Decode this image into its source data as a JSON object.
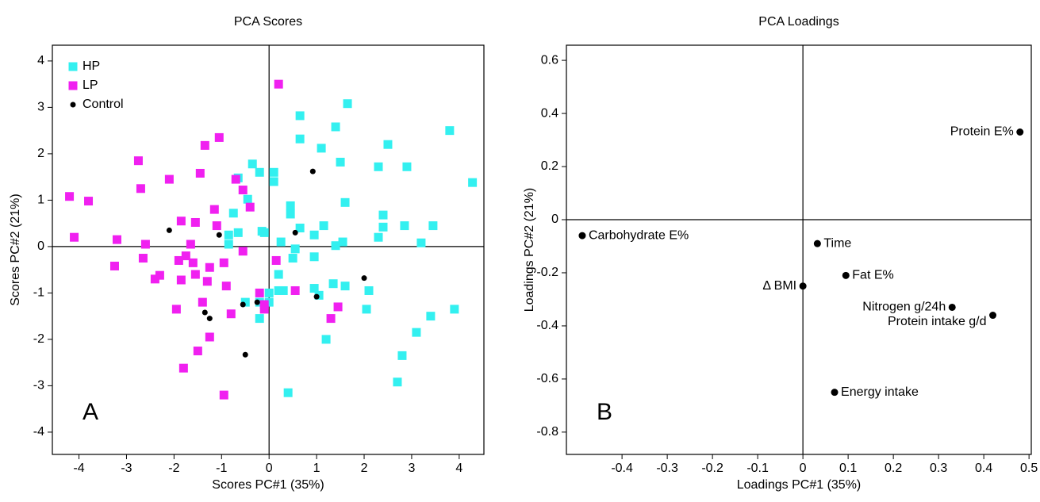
{
  "chart_data": [
    {
      "type": "scatter",
      "title": "PCA Scores",
      "x_label": "Scores PC#1 (35%)",
      "y_label": "Scores PC#2 (21%)",
      "annotation": "A",
      "xlim": [
        -4.56,
        4.52
      ],
      "ylim": [
        -4.48,
        4.34
      ],
      "xticks": [
        -4,
        -3,
        -2,
        -1,
        0,
        1,
        2,
        3,
        4
      ],
      "yticks": [
        -4,
        -3,
        -2,
        -1,
        0,
        1,
        2,
        3,
        4
      ],
      "zero_lines": true,
      "legend": "upper left",
      "series": [
        {
          "name": "HP",
          "color": "#33f0f0",
          "marker": "square",
          "x": [
            4.28,
            3.8,
            3.9,
            3.45,
            3.4,
            3.1,
            3.2,
            2.9,
            2.85,
            2.8,
            2.7,
            2.5,
            2.4,
            2.4,
            2.3,
            2.3,
            2.05,
            2.1,
            1.65,
            1.6,
            1.6,
            1.55,
            1.5,
            1.4,
            1.4,
            1.35,
            1.2,
            1.15,
            1.1,
            1.05,
            0.95,
            0.95,
            0.95,
            0.65,
            0.65,
            0.65,
            0.55,
            0.5,
            0.45,
            0.45,
            0.4,
            0.3,
            0.25,
            0.2,
            0.1,
            0.1,
            0.0,
            0.0,
            -0.1,
            -0.15,
            -0.2,
            -0.2,
            -0.35,
            -0.45,
            -0.5,
            -0.65,
            -0.65,
            -0.75,
            -0.85,
            -0.85,
            -0.2,
            0.2
          ],
          "values": [
            1.38,
            2.5,
            -1.35,
            0.45,
            -1.5,
            -1.85,
            0.08,
            1.72,
            0.45,
            -2.35,
            -2.92,
            2.2,
            0.68,
            0.42,
            1.72,
            0.2,
            -1.35,
            -0.95,
            3.08,
            0.95,
            -0.85,
            0.1,
            1.82,
            2.58,
            0.02,
            -0.8,
            -2.0,
            0.45,
            2.12,
            -1.05,
            0.25,
            -0.22,
            -0.9,
            2.82,
            2.32,
            0.4,
            -0.05,
            -0.25,
            0.88,
            0.7,
            -3.15,
            -0.95,
            0.1,
            -0.6,
            1.6,
            1.4,
            -1.0,
            -1.2,
            0.3,
            0.33,
            1.6,
            -1.55,
            1.78,
            1.02,
            -1.2,
            0.3,
            1.48,
            0.72,
            0.05,
            0.25,
            -1.2,
            -0.95
          ]
        },
        {
          "name": "LP",
          "color": "#f020f0",
          "marker": "square",
          "x": [
            -4.2,
            -4.1,
            -3.8,
            -3.25,
            -3.2,
            -2.75,
            -2.7,
            -2.65,
            -2.6,
            -2.4,
            -2.3,
            -2.1,
            -1.95,
            -1.9,
            -1.85,
            -1.85,
            -1.8,
            -1.75,
            -1.65,
            -1.6,
            -1.55,
            -1.55,
            -1.5,
            -1.45,
            -1.4,
            -1.35,
            -1.3,
            -1.25,
            -1.25,
            -1.15,
            -1.1,
            -1.05,
            -0.95,
            -0.9,
            -0.95,
            -0.8,
            -0.7,
            -0.55,
            -0.55,
            -0.4,
            -0.2,
            -0.1,
            -0.1,
            0.15,
            0.2,
            0.55,
            1.3,
            1.45
          ],
          "values": [
            1.08,
            0.2,
            0.98,
            -0.42,
            0.15,
            1.85,
            1.25,
            -0.25,
            0.05,
            -0.7,
            -0.62,
            1.45,
            -1.35,
            -0.3,
            0.55,
            -0.72,
            -2.62,
            -0.2,
            0.05,
            -0.35,
            0.52,
            -0.6,
            -2.25,
            1.58,
            -1.2,
            2.18,
            -0.75,
            -1.95,
            -0.45,
            0.8,
            0.45,
            2.35,
            -0.35,
            -0.85,
            -3.2,
            -1.45,
            1.45,
            1.22,
            -0.1,
            0.85,
            -1.0,
            -1.35,
            -1.25,
            -0.3,
            3.5,
            -0.95,
            -1.55,
            -1.3
          ]
        },
        {
          "name": "Control",
          "color": "#000000",
          "marker": "circle",
          "x": [
            -2.1,
            -1.05,
            -1.35,
            -1.25,
            -0.55,
            -0.25,
            -0.5,
            0.55,
            0.92,
            1.0,
            2.0
          ],
          "values": [
            0.35,
            0.25,
            -1.42,
            -1.55,
            -1.25,
            -1.2,
            -2.33,
            0.3,
            1.62,
            -1.08,
            -0.68
          ]
        }
      ]
    },
    {
      "type": "scatter",
      "title": "PCA Loadings",
      "x_label": "Loadings PC#1 (35%)",
      "y_label": "Loadings PC#2 (21%)",
      "annotation": "B",
      "xlim": [
        -0.523,
        0.505
      ],
      "ylim": [
        -0.884,
        0.657
      ],
      "xticks": [
        -0.4,
        -0.3,
        -0.2,
        -0.1,
        0,
        0.1,
        0.2,
        0.3,
        0.4,
        0.5
      ],
      "yticks": [
        -0.8,
        -0.6,
        -0.4,
        -0.2,
        0,
        0.2,
        0.4,
        0.6
      ],
      "zero_lines": true,
      "color": "#000000",
      "labels": [
        "Carbohydrate E%",
        "Time",
        "Δ BMI",
        "Fat E%",
        "Nitrogen g/24h",
        "Protein intake g/d",
        "Energy intake",
        "Protein E%"
      ],
      "x": [
        -0.488,
        0.032,
        0.0,
        0.095,
        0.33,
        0.42,
        0.07,
        0.48
      ],
      "values": [
        -0.06,
        -0.09,
        -0.25,
        -0.21,
        -0.33,
        -0.36,
        -0.65,
        0.33
      ]
    }
  ]
}
